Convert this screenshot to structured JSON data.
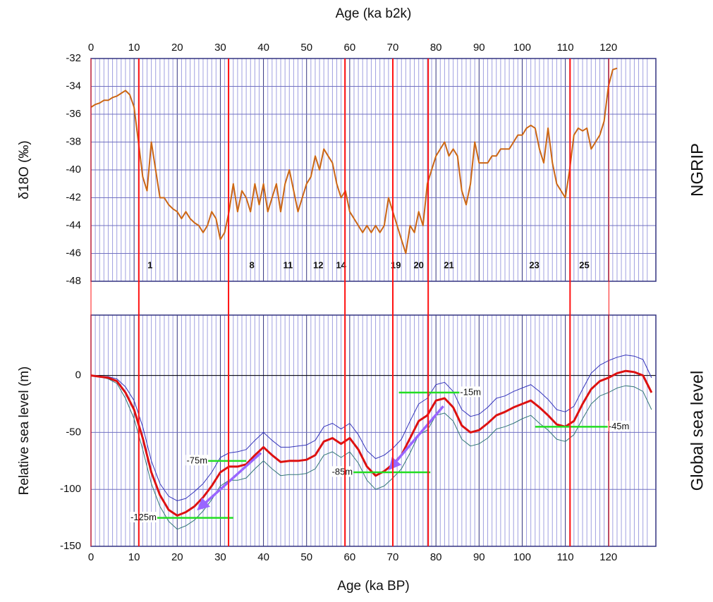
{
  "chart_data": [
    {
      "type": "line",
      "title": "Age (ka b2k)",
      "ylabel": "δ18O (‰)",
      "side_label": "NGRIP",
      "xlim": [
        0,
        131
      ],
      "xticks": [
        0,
        10,
        20,
        30,
        40,
        50,
        60,
        70,
        80,
        90,
        100,
        110,
        120
      ],
      "ylim": [
        -48,
        -32
      ],
      "yticks": [
        -32,
        -34,
        -36,
        -38,
        -40,
        -42,
        -44,
        -46,
        -48
      ],
      "grid": true,
      "x": [
        0,
        1,
        2,
        3,
        4,
        5,
        6,
        7,
        8,
        9,
        10,
        11,
        12,
        13,
        14,
        15,
        16,
        17,
        18,
        19,
        20,
        21,
        22,
        23,
        24,
        25,
        26,
        27,
        28,
        29,
        30,
        31,
        32,
        33,
        34,
        35,
        36,
        37,
        38,
        39,
        40,
        41,
        42,
        43,
        44,
        45,
        46,
        47,
        48,
        49,
        50,
        51,
        52,
        53,
        54,
        55,
        56,
        57,
        58,
        59,
        60,
        61,
        62,
        63,
        64,
        65,
        66,
        67,
        68,
        69,
        70,
        71,
        72,
        73,
        74,
        75,
        76,
        77,
        78,
        79,
        80,
        81,
        82,
        83,
        84,
        85,
        86,
        87,
        88,
        89,
        90,
        91,
        92,
        93,
        94,
        95,
        96,
        97,
        98,
        99,
        100,
        101,
        102,
        103,
        104,
        105,
        106,
        107,
        108,
        109,
        110,
        111,
        112,
        113,
        114,
        115,
        116,
        117,
        118,
        119,
        120,
        121,
        122
      ],
      "series": [
        {
          "color": "#cc6614",
          "values": [
            -35.5,
            -35.3,
            -35.2,
            -35,
            -35,
            -34.8,
            -34.7,
            -34.5,
            -34.3,
            -34.6,
            -35.5,
            -38,
            -40.5,
            -41.5,
            -38,
            -40,
            -42,
            -42,
            -42.5,
            -42.8,
            -43,
            -43.5,
            -43,
            -43.5,
            -43.8,
            -44,
            -44.5,
            -44,
            -43,
            -43.5,
            -45,
            -44.5,
            -43,
            -41,
            -43,
            -41.5,
            -42,
            -43,
            -41,
            -42.5,
            -41,
            -43,
            -42,
            -41,
            -43,
            -41,
            -40,
            -41.5,
            -43,
            -42,
            -41,
            -40.5,
            -39,
            -40,
            -38.5,
            -39,
            -39.5,
            -41,
            -42,
            -41.5,
            -43,
            -43.5,
            -44,
            -44.5,
            -44,
            -44.5,
            -44,
            -44.5,
            -44,
            -42,
            -43,
            -44,
            -45,
            -46,
            -44,
            -44.5,
            -43,
            -44,
            -41,
            -40,
            -39,
            -38.5,
            -38,
            -39,
            -38.5,
            -39,
            -41.5,
            -42.5,
            -41,
            -38,
            -39.5,
            -39.5,
            -39.5,
            -39,
            -39,
            -38.5,
            -38.5,
            -38.5,
            -38,
            -37.5,
            -37.5,
            -37,
            -36.8,
            -37,
            -38.5,
            -39.5,
            -37,
            -39.5,
            -41,
            -41.5,
            -42,
            -40,
            -37.5,
            -37,
            -37.2,
            -37,
            -38.5,
            -38,
            -37.5,
            -36.5,
            -34,
            -32.8,
            -32.7
          ]
        }
      ],
      "annotations": [
        {
          "text": "1",
          "x": 13.7,
          "y": -46.9
        },
        {
          "text": "8",
          "x": 37.3,
          "y": -46.9
        },
        {
          "text": "11",
          "x": 45.7,
          "y": -46.9
        },
        {
          "text": "12",
          "x": 52.7,
          "y": -46.9
        },
        {
          "text": "14",
          "x": 58,
          "y": -46.9
        },
        {
          "text": "19",
          "x": 70.7,
          "y": -46.9
        },
        {
          "text": "20",
          "x": 76,
          "y": -46.9
        },
        {
          "text": "21",
          "x": 83,
          "y": -46.9
        },
        {
          "text": "23",
          "x": 102.8,
          "y": -46.9
        },
        {
          "text": "25",
          "x": 114.4,
          "y": -46.9
        }
      ]
    },
    {
      "type": "line",
      "xlabel": "Age (ka BP)",
      "ylabel": "Relative sea level (m)",
      "side_label": "Global sea level",
      "xlim": [
        0,
        131
      ],
      "xticks": [
        0,
        10,
        20,
        30,
        40,
        50,
        60,
        70,
        80,
        90,
        100,
        110,
        120
      ],
      "ylim": [
        -150,
        53
      ],
      "yticks": [
        0,
        -50,
        -100,
        -150
      ],
      "grid": true,
      "x": [
        0,
        2,
        4,
        6,
        8,
        10,
        12,
        14,
        16,
        18,
        20,
        22,
        24,
        26,
        28,
        30,
        32,
        34,
        36,
        38,
        40,
        42,
        44,
        46,
        48,
        50,
        52,
        54,
        56,
        58,
        60,
        62,
        64,
        66,
        68,
        70,
        72,
        74,
        76,
        78,
        80,
        82,
        84,
        86,
        88,
        90,
        92,
        94,
        96,
        98,
        100,
        102,
        104,
        106,
        108,
        110,
        112,
        114,
        116,
        118,
        120,
        122,
        124,
        126,
        128,
        130
      ],
      "series": [
        {
          "color": "#3333bb",
          "values": [
            0,
            -1,
            -1,
            -3,
            -10,
            -22,
            -45,
            -75,
            -95,
            -106,
            -110,
            -108,
            -102,
            -95,
            -85,
            -72,
            -68,
            -67,
            -65,
            -57,
            -50,
            -57,
            -63,
            -63,
            -62,
            -61,
            -57,
            -45,
            -42,
            -47,
            -42,
            -52,
            -66,
            -73,
            -70,
            -64,
            -56,
            -40,
            -25,
            -20,
            -8,
            -6,
            -14,
            -30,
            -36,
            -34,
            -28,
            -20,
            -18,
            -14,
            -11,
            -8,
            -14,
            -21,
            -30,
            -32,
            -27,
            -12,
            2,
            9,
            13,
            16,
            18,
            17,
            14,
            -2
          ]
        },
        {
          "color": "#337777",
          "values": [
            0,
            -1,
            -3,
            -7,
            -20,
            -38,
            -65,
            -95,
            -115,
            -128,
            -135,
            -132,
            -127,
            -119,
            -109,
            -97,
            -92,
            -92,
            -90,
            -82,
            -75,
            -82,
            -88,
            -87,
            -87,
            -86,
            -82,
            -70,
            -67,
            -72,
            -67,
            -77,
            -92,
            -100,
            -97,
            -90,
            -82,
            -68,
            -52,
            -48,
            -35,
            -33,
            -40,
            -56,
            -62,
            -60,
            -55,
            -47,
            -45,
            -42,
            -38,
            -35,
            -42,
            -48,
            -56,
            -58,
            -52,
            -38,
            -25,
            -18,
            -15,
            -11,
            -9,
            -10,
            -14,
            -30
          ]
        },
        {
          "color": "#dd1111",
          "values": [
            0,
            -1,
            -2,
            -5,
            -15,
            -30,
            -55,
            -85,
            -105,
            -118,
            -123,
            -120,
            -115,
            -107,
            -97,
            -85,
            -80,
            -80,
            -78,
            -70,
            -63,
            -70,
            -76,
            -75,
            -75,
            -74,
            -70,
            -58,
            -55,
            -60,
            -55,
            -65,
            -80,
            -88,
            -84,
            -78,
            -70,
            -55,
            -40,
            -35,
            -22,
            -20,
            -28,
            -44,
            -50,
            -48,
            -42,
            -35,
            -32,
            -28,
            -25,
            -22,
            -28,
            -35,
            -43,
            -45,
            -40,
            -25,
            -12,
            -5,
            -2,
            2,
            4,
            3,
            0,
            -15
          ]
        }
      ],
      "levels": [
        {
          "label": "-15m",
          "value": -15,
          "x": [
            71.4,
            85.6
          ],
          "label_side": "right"
        },
        {
          "label": "-45m",
          "value": -45,
          "x": [
            103,
            120
          ],
          "label_side": "right"
        },
        {
          "label": "-75m",
          "value": -75,
          "x": [
            27,
            36
          ],
          "label_side": "left"
        },
        {
          "label": "-85m",
          "value": -85,
          "x": [
            60.7,
            78.7
          ],
          "label_side": "left"
        },
        {
          "label": "-125m",
          "value": -125,
          "x": [
            15.2,
            33
          ],
          "label_side": "left"
        }
      ],
      "level_color": "#22dd22",
      "arrows": [
        {
          "from": [
            39.4,
            -68
          ],
          "to": [
            25,
            -117
          ]
        },
        {
          "from": [
            81.7,
            -27
          ],
          "to": [
            69.4,
            -81.5
          ]
        }
      ],
      "arrow_color": "#9966ff"
    }
  ],
  "event_lines": {
    "x": [
      0,
      11.1,
      31.9,
      58.9,
      70,
      78.2,
      111.1,
      120.1
    ],
    "color": "#ff1111"
  }
}
